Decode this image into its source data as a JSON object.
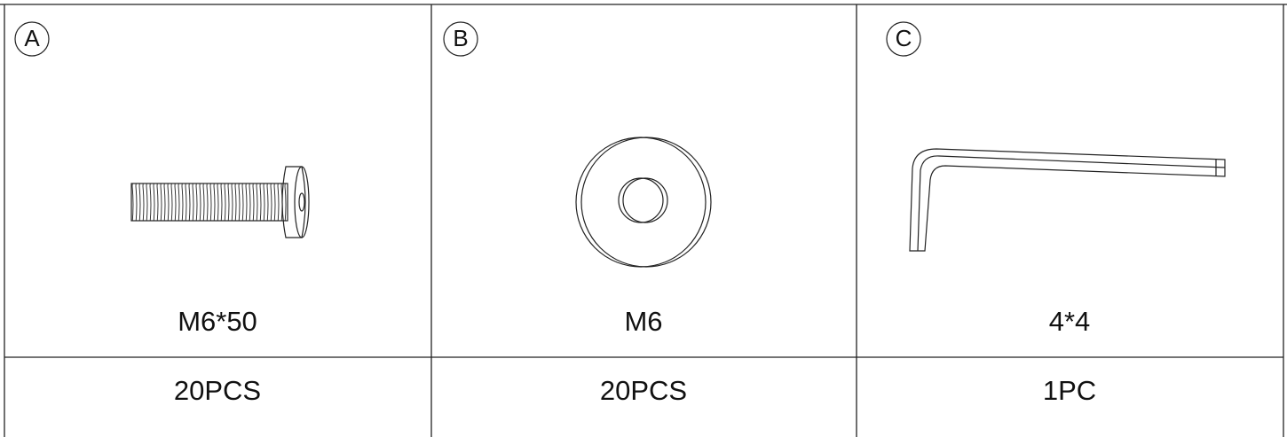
{
  "parts": [
    {
      "letter": "A",
      "size": "M6*50",
      "quantity": "20PCS"
    },
    {
      "letter": "B",
      "size": "M6",
      "quantity": "20PCS"
    },
    {
      "letter": "C",
      "size": "4*4",
      "quantity": "1PC"
    }
  ]
}
